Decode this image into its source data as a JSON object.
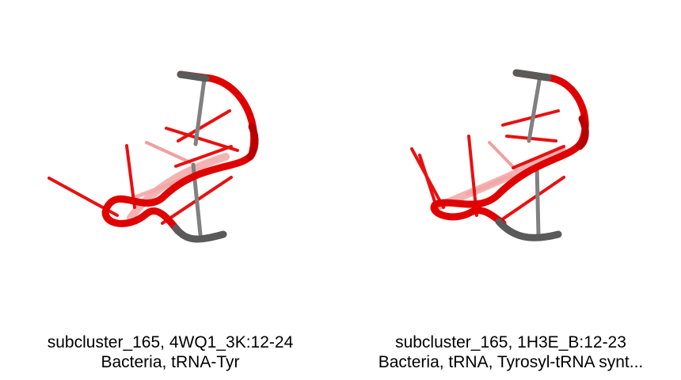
{
  "panels": [
    {
      "line1": "subcluster_165, 4WQ1_3K:12-24",
      "line2": "Bacteria, tRNA-Tyr"
    },
    {
      "line1": "subcluster_165, 1H3E_B:12-23",
      "line2": "Bacteria, tRNA, Tyrosyl-tRNA synt..."
    }
  ],
  "colors": {
    "backbone": "#e00000",
    "backbone_dark": "#c00000",
    "terminal": "#5a5a5a",
    "pair_stick": "#808080",
    "base_stick": "#e81010"
  }
}
